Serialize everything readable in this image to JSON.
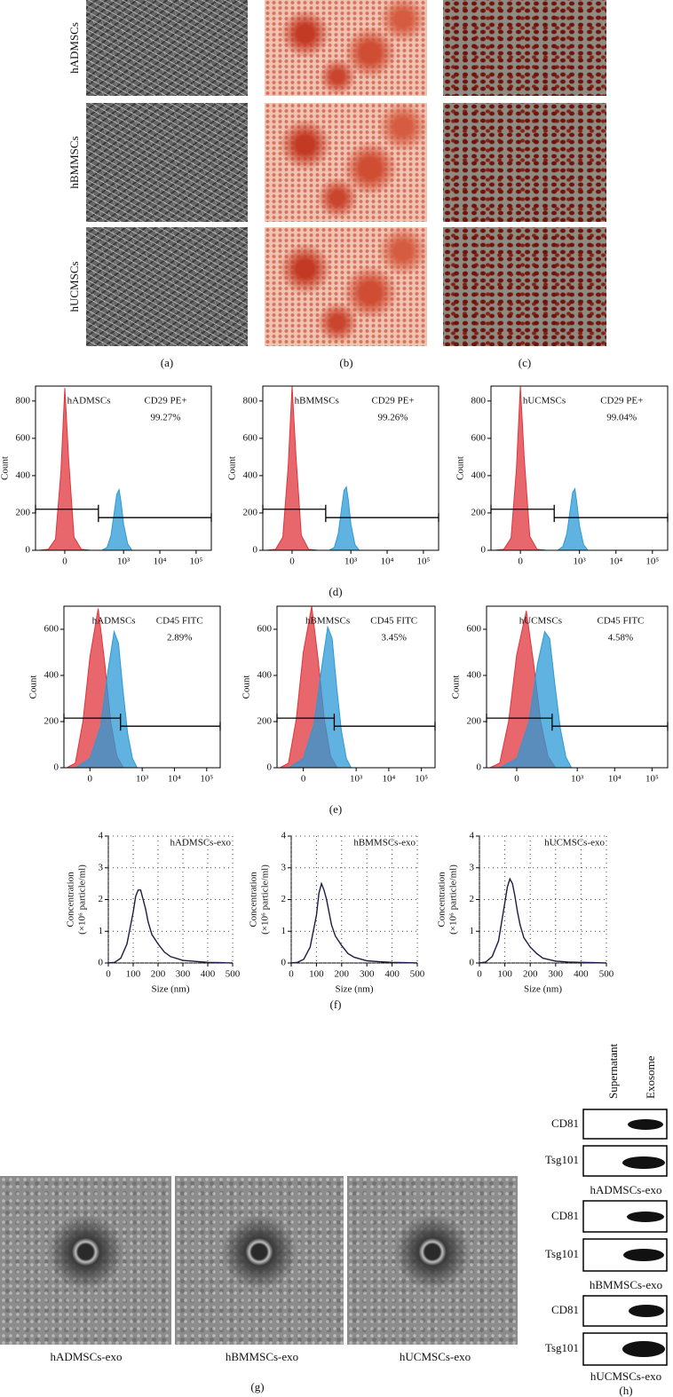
{
  "microscopy": {
    "row_labels": [
      "hADMSCs",
      "hBMMSCs",
      "hUCMSCs"
    ],
    "panel_labels": [
      "(a)",
      "(b)",
      "(c)"
    ]
  },
  "flow_panel_labels": [
    "(d)",
    "(e)"
  ],
  "nta_panel_label": "(f)",
  "chart_data": [
    {
      "type": "flow",
      "sample": "hADMSCs",
      "marker": "CD29 PE+",
      "percent": "99.27%",
      "ylabel": "Count",
      "xscale": "biexponential",
      "xlim": [
        -150,
        262144
      ],
      "xticks": [
        0,
        {
          "value": 1000,
          "label": "10³"
        },
        {
          "value": 10000,
          "label": "10⁴"
        },
        {
          "value": 100000,
          "label": "10⁵"
        }
      ],
      "ylim": [
        0,
        880
      ],
      "yticks": [
        0,
        200,
        400,
        600,
        800
      ],
      "series": [
        {
          "color": "#e0343c",
          "x": [
            -120,
            -60,
            -30,
            -12,
            0,
            12,
            30,
            60,
            120
          ],
          "values": [
            0,
            5,
            60,
            420,
            870,
            480,
            70,
            5,
            0
          ]
        },
        {
          "color": "#2b9ad6",
          "x": [
            250,
            350,
            450,
            550,
            650,
            750,
            850,
            1000,
            1300,
            1700
          ],
          "values": [
            0,
            15,
            80,
            200,
            300,
            325,
            260,
            140,
            35,
            0
          ]
        }
      ],
      "gates": [
        {
          "x": [
            -150,
            200
          ],
          "y": 220
        },
        {
          "x": [
            200,
            262144
          ],
          "y": 175
        }
      ]
    },
    {
      "type": "flow",
      "sample": "hBMMSCs",
      "marker": "CD29 PE+",
      "percent": "99.26%",
      "ylabel": "Count",
      "xscale": "biexponential",
      "xlim": [
        -150,
        262144
      ],
      "xticks": [
        0,
        {
          "value": 1000,
          "label": "10³"
        },
        {
          "value": 10000,
          "label": "10⁴"
        },
        {
          "value": 100000,
          "label": "10⁵"
        }
      ],
      "ylim": [
        0,
        880
      ],
      "yticks": [
        0,
        200,
        400,
        600,
        800
      ],
      "series": [
        {
          "color": "#e0343c",
          "x": [
            -120,
            -60,
            -30,
            -12,
            0,
            12,
            30,
            60,
            120
          ],
          "values": [
            0,
            5,
            70,
            450,
            880,
            500,
            80,
            5,
            0
          ]
        },
        {
          "color": "#2b9ad6",
          "x": [
            250,
            350,
            450,
            550,
            650,
            750,
            850,
            1000,
            1300,
            1700
          ],
          "values": [
            0,
            15,
            90,
            220,
            320,
            340,
            270,
            140,
            30,
            0
          ]
        }
      ],
      "gates": [
        {
          "x": [
            -150,
            200
          ],
          "y": 220
        },
        {
          "x": [
            200,
            262144
          ],
          "y": 175
        }
      ]
    },
    {
      "type": "flow",
      "sample": "hUCMSCs",
      "marker": "CD29 PE+",
      "percent": "99.04%",
      "ylabel": "Count",
      "xscale": "biexponential",
      "xlim": [
        -150,
        262144
      ],
      "xticks": [
        0,
        {
          "value": 1000,
          "label": "10³"
        },
        {
          "value": 10000,
          "label": "10⁴"
        },
        {
          "value": 100000,
          "label": "10⁵"
        }
      ],
      "ylim": [
        0,
        880
      ],
      "yticks": [
        0,
        200,
        400,
        600,
        800
      ],
      "series": [
        {
          "color": "#e0343c",
          "x": [
            -120,
            -60,
            -30,
            -12,
            0,
            12,
            30,
            60,
            120
          ],
          "values": [
            0,
            5,
            65,
            440,
            880,
            490,
            75,
            5,
            0
          ]
        },
        {
          "color": "#2b9ad6",
          "x": [
            250,
            350,
            450,
            550,
            650,
            750,
            850,
            1000,
            1300,
            1700
          ],
          "values": [
            0,
            20,
            90,
            210,
            310,
            330,
            250,
            130,
            30,
            0
          ]
        }
      ],
      "gates": [
        {
          "x": [
            -150,
            200
          ],
          "y": 220
        },
        {
          "x": [
            200,
            262144
          ],
          "y": 175
        }
      ]
    },
    {
      "type": "flow",
      "sample": "hADMSCs",
      "marker": "CD45 FITC",
      "percent": "2.89%",
      "ylabel": "Count",
      "xscale": "biexponential",
      "xlim": [
        -150,
        262144
      ],
      "xticks": [
        0,
        {
          "value": 1000,
          "label": "10³"
        },
        {
          "value": 10000,
          "label": "10⁴"
        },
        {
          "value": 100000,
          "label": "10⁵"
        }
      ],
      "ylim": [
        0,
        700
      ],
      "yticks": [
        0,
        200,
        400,
        600
      ],
      "series": [
        {
          "color": "#e0343c",
          "x": [
            -120,
            -60,
            -25,
            0,
            30,
            60,
            100,
            160,
            260
          ],
          "values": [
            0,
            20,
            200,
            480,
            690,
            460,
            200,
            50,
            0
          ]
        },
        {
          "color": "#2b9ad6",
          "x": [
            -60,
            0,
            40,
            80,
            130,
            180,
            250,
            350,
            500,
            700
          ],
          "values": [
            0,
            40,
            180,
            420,
            590,
            540,
            340,
            150,
            40,
            0
          ]
        }
      ],
      "gates": [
        {
          "x": [
            -150,
            210
          ],
          "y": 215
        },
        {
          "x": [
            210,
            262144
          ],
          "y": 180
        }
      ]
    },
    {
      "type": "flow",
      "sample": "hBMMSCs",
      "marker": "CD45 FITC",
      "percent": "3.45%",
      "ylabel": "Count",
      "xscale": "biexponential",
      "xlim": [
        -150,
        262144
      ],
      "xticks": [
        0,
        {
          "value": 1000,
          "label": "10³"
        },
        {
          "value": 10000,
          "label": "10⁴"
        },
        {
          "value": 100000,
          "label": "10⁵"
        }
      ],
      "ylim": [
        0,
        700
      ],
      "yticks": [
        0,
        200,
        400,
        600
      ],
      "series": [
        {
          "color": "#e0343c",
          "x": [
            -120,
            -60,
            -25,
            0,
            30,
            60,
            100,
            160,
            260
          ],
          "values": [
            0,
            20,
            210,
            500,
            700,
            470,
            210,
            50,
            0
          ]
        },
        {
          "color": "#2b9ad6",
          "x": [
            -60,
            0,
            40,
            80,
            130,
            180,
            250,
            350,
            500,
            700
          ],
          "values": [
            0,
            40,
            190,
            430,
            610,
            560,
            350,
            160,
            40,
            0
          ]
        }
      ],
      "gates": [
        {
          "x": [
            -150,
            210
          ],
          "y": 215
        },
        {
          "x": [
            210,
            262144
          ],
          "y": 180
        }
      ]
    },
    {
      "type": "flow",
      "sample": "hUCMSCs",
      "marker": "CD45 FITC",
      "percent": "4.58%",
      "ylabel": "Count",
      "xscale": "biexponential",
      "xlim": [
        -150,
        262144
      ],
      "xticks": [
        0,
        {
          "value": 1000,
          "label": "10³"
        },
        {
          "value": 10000,
          "label": "10⁴"
        },
        {
          "value": 100000,
          "label": "10⁵"
        }
      ],
      "ylim": [
        0,
        700
      ],
      "yticks": [
        0,
        200,
        400,
        600
      ],
      "series": [
        {
          "color": "#e0343c",
          "x": [
            -120,
            -60,
            -25,
            0,
            30,
            60,
            100,
            160,
            260
          ],
          "values": [
            0,
            20,
            200,
            490,
            680,
            450,
            200,
            50,
            0
          ]
        },
        {
          "color": "#2b9ad6",
          "x": [
            -60,
            0,
            40,
            80,
            130,
            180,
            250,
            350,
            500,
            700
          ],
          "values": [
            0,
            40,
            200,
            450,
            590,
            560,
            360,
            170,
            45,
            0
          ]
        }
      ],
      "gates": [
        {
          "x": [
            -150,
            210
          ],
          "y": 215
        },
        {
          "x": [
            210,
            262144
          ],
          "y": 180
        }
      ]
    },
    {
      "type": "line",
      "sample": "hADMSCs-exo",
      "xlabel": "Size (nm)",
      "ylabel": [
        "Concentration",
        "(×10⁶ particle/ml)"
      ],
      "xlim": [
        0,
        500
      ],
      "xticks": [
        0,
        100,
        200,
        300,
        400,
        500
      ],
      "ylim": [
        0,
        4
      ],
      "yticks": [
        0,
        1,
        2,
        3,
        4
      ],
      "grid": true,
      "x": [
        0,
        25,
        50,
        75,
        100,
        110,
        120,
        130,
        140,
        150,
        160,
        175,
        200,
        225,
        250,
        300,
        350,
        400,
        450,
        500
      ],
      "series": [
        {
          "color": "#1c1c44",
          "values": [
            0,
            0.02,
            0.15,
            0.6,
            1.6,
            2.1,
            2.3,
            2.3,
            2.0,
            1.7,
            1.3,
            0.9,
            0.6,
            0.35,
            0.2,
            0.08,
            0.05,
            0.02,
            0.01,
            0
          ]
        }
      ]
    },
    {
      "type": "line",
      "sample": "hBMMSCs-exo",
      "xlabel": "Size (nm)",
      "ylabel": [
        "Concentration",
        "(×10⁶ particle/ml)"
      ],
      "xlim": [
        0,
        500
      ],
      "xticks": [
        0,
        100,
        200,
        300,
        400,
        500
      ],
      "ylim": [
        0,
        4
      ],
      "yticks": [
        0,
        1,
        2,
        3,
        4
      ],
      "grid": true,
      "x": [
        0,
        25,
        50,
        75,
        100,
        110,
        120,
        130,
        140,
        150,
        160,
        175,
        200,
        225,
        250,
        300,
        350,
        400,
        450,
        500
      ],
      "series": [
        {
          "color": "#1c1c44",
          "values": [
            0,
            0.02,
            0.12,
            0.5,
            1.5,
            2.2,
            2.5,
            2.3,
            2.0,
            1.6,
            1.2,
            0.85,
            0.55,
            0.3,
            0.18,
            0.07,
            0.04,
            0.02,
            0.01,
            0
          ]
        }
      ]
    },
    {
      "type": "line",
      "sample": "hUCMSCs-exo",
      "xlabel": "Size (nm)",
      "ylabel": [
        "Concentration",
        "(×10⁶ particle/ml)"
      ],
      "xlim": [
        0,
        500
      ],
      "xticks": [
        0,
        100,
        200,
        300,
        400,
        500
      ],
      "ylim": [
        0,
        4
      ],
      "yticks": [
        0,
        1,
        2,
        3,
        4
      ],
      "grid": true,
      "x": [
        0,
        25,
        50,
        75,
        100,
        110,
        120,
        130,
        140,
        150,
        160,
        175,
        200,
        225,
        250,
        300,
        350,
        400,
        450,
        500
      ],
      "series": [
        {
          "color": "#1c1c44",
          "values": [
            0,
            0.03,
            0.2,
            0.7,
            1.9,
            2.4,
            2.65,
            2.5,
            2.1,
            1.6,
            1.2,
            0.8,
            0.5,
            0.3,
            0.15,
            0.06,
            0.03,
            0.02,
            0.01,
            0
          ]
        }
      ]
    }
  ],
  "tem": {
    "labels": [
      "hADMSCs-exo",
      "hBMMSCs-exo",
      "hUCMSCs-exo"
    ],
    "panel_label": "(g)"
  },
  "western": {
    "lanes": [
      "Supernatant",
      "Exosome"
    ],
    "bands": [
      "CD81",
      "Tsg101"
    ],
    "groups": [
      "hADMSCs-exo",
      "hBMMSCs-exo",
      "hUCMSCs-exo"
    ],
    "panel_label": "(h)"
  }
}
